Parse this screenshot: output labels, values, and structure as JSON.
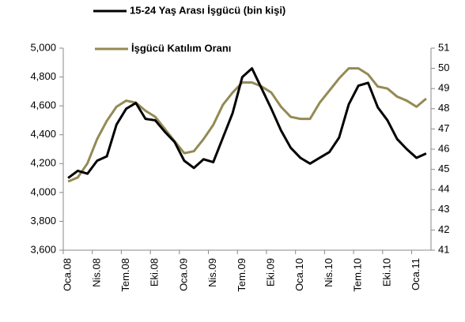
{
  "chart_data": {
    "type": "line",
    "categories": [
      "Oca.08",
      null,
      null,
      "Nis.08",
      null,
      null,
      "Tem.08",
      null,
      null,
      "Eki.08",
      null,
      null,
      "Oca.09",
      null,
      null,
      "Nis.09",
      null,
      null,
      "Tem.09",
      null,
      null,
      "Eki.09",
      null,
      null,
      "Oca.10",
      null,
      null,
      "Nis.10",
      null,
      null,
      "Tem.10",
      null,
      null,
      "Eki.10",
      null,
      null,
      "Oca.11",
      null
    ],
    "series": [
      {
        "name": "15-24 Yaş Arası İşgücü (bin kişi)",
        "color": "#000000",
        "values": [
          4100,
          4150,
          4130,
          4220,
          4250,
          4470,
          4580,
          4620,
          4510,
          4500,
          4420,
          4350,
          4220,
          4170,
          4230,
          4210,
          4380,
          4550,
          4800,
          4860,
          4720,
          4580,
          4430,
          4310,
          4240,
          4200,
          4240,
          4280,
          4380,
          4610,
          4740,
          4760,
          4590,
          4500,
          4370,
          4300,
          4240,
          4270
        ]
      },
      {
        "name": "İşgücü Katılım Oranı",
        "color": "#948a54",
        "axis": "y2",
        "values": [
          44.4,
          44.6,
          45.3,
          46.5,
          47.4,
          48.1,
          48.4,
          48.3,
          47.9,
          47.6,
          47.0,
          46.4,
          45.8,
          45.9,
          46.5,
          47.2,
          48.2,
          48.8,
          49.3,
          49.3,
          49.1,
          48.8,
          48.1,
          47.6,
          47.5,
          47.5,
          48.3,
          48.9,
          49.5,
          50.0,
          50.0,
          49.7,
          49.1,
          49.0,
          48.6,
          48.4,
          48.1,
          48.5
        ]
      }
    ],
    "ylim": [
      3600,
      5000
    ],
    "yticks": [
      {
        "value": 3600,
        "label": "3,600"
      },
      {
        "value": 3800,
        "label": "3,800"
      },
      {
        "value": 4000,
        "label": "4,000"
      },
      {
        "value": 4200,
        "label": "4,200"
      },
      {
        "value": 4400,
        "label": "4,400"
      },
      {
        "value": 4600,
        "label": "4,600"
      },
      {
        "value": 4800,
        "label": "4,800"
      },
      {
        "value": 5000,
        "label": "5,000"
      }
    ],
    "y2lim": [
      41,
      51
    ],
    "y2ticks": [
      41,
      42,
      43,
      44,
      45,
      46,
      47,
      48,
      49,
      50,
      51
    ],
    "grid": false
  }
}
